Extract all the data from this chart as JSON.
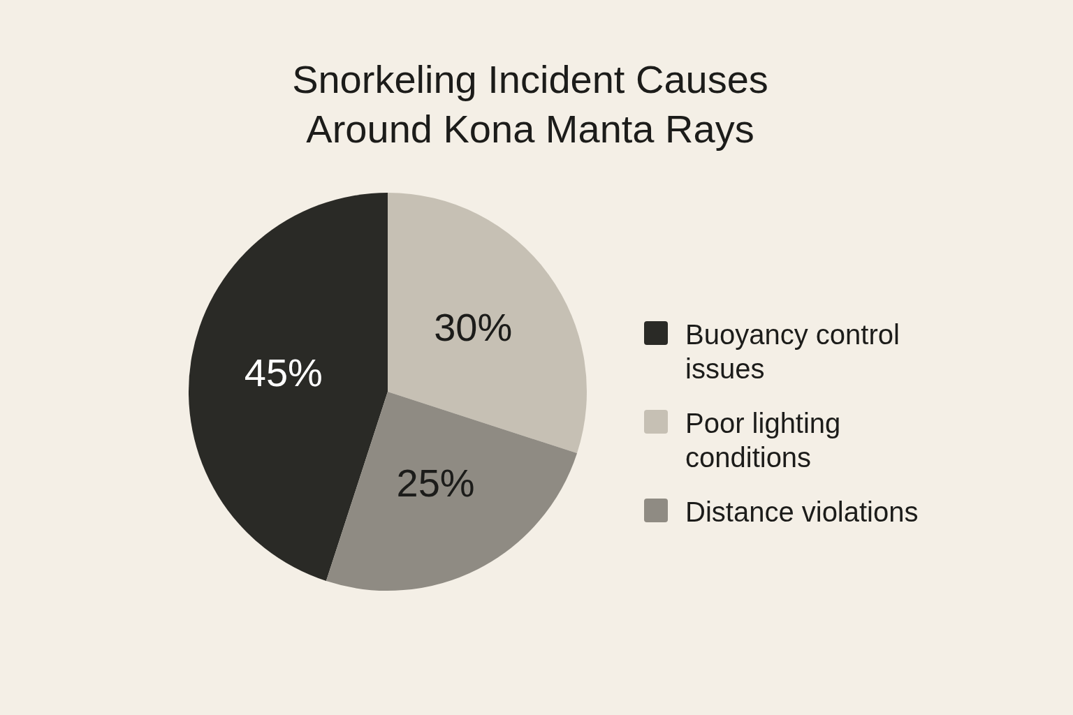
{
  "chart_data": {
    "type": "pie",
    "title": "Snorkeling Incident Causes Around Kona Manta Rays",
    "categories": [
      "Buoyancy control issues",
      "Poor lighting conditions",
      "Distance violations"
    ],
    "values": [
      45,
      30,
      25
    ],
    "colors": [
      "#2a2a26",
      "#c6c0b4",
      "#8f8b83"
    ],
    "value_labels": [
      "45%",
      "30%",
      "25%"
    ],
    "legend": "right"
  }
}
